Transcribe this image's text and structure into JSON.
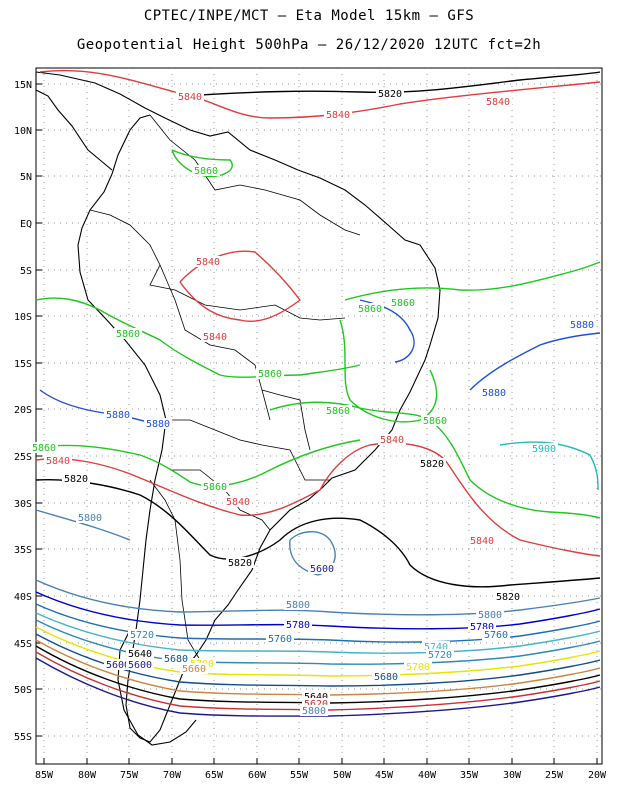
{
  "header": {
    "line1": "CPTEC/INPE/MCT –  Eta Model 15km – GFS",
    "line2": "Geopotential Height 500hPa – 26/12/2020 12UTC fct=2h"
  },
  "axes": {
    "lat_labels": [
      "15N",
      "10N",
      "5N",
      "EQ",
      "5S",
      "10S",
      "15S",
      "20S",
      "25S",
      "30S",
      "35S",
      "40S",
      "45S",
      "50S",
      "55S"
    ],
    "lon_labels": [
      "85W",
      "80W",
      "75W",
      "70W",
      "65W",
      "60W",
      "55W",
      "50W",
      "45W",
      "40W",
      "35W",
      "30W",
      "25W",
      "20W"
    ]
  },
  "colors": {
    "c5600": "#1a1a8c",
    "c5620": "#c83232",
    "c5640": "#000000",
    "c5660": "#cd853f",
    "c5680": "#104e8b",
    "c5700": "#e6e600",
    "c5720": "#2d8bb5",
    "c5740": "#46b4c8",
    "c5760": "#1e6eb4",
    "c5780": "#0000cd",
    "c5800": "#4682b4",
    "c5820": "#000000",
    "c5840": "#e03c3c",
    "c5860": "#1ec81e",
    "c5880": "#1e50dc",
    "c5900": "#1ebeb4"
  },
  "contour_labels": [
    {
      "text": "5840",
      "color": "c5840"
    },
    {
      "text": "5820",
      "color": "c5820"
    },
    {
      "text": "5840",
      "color": "c5840"
    },
    {
      "text": "5840",
      "color": "c5840"
    },
    {
      "text": "5860",
      "color": "c5860"
    },
    {
      "text": "5840",
      "color": "c5840"
    },
    {
      "text": "5840",
      "color": "c5840"
    },
    {
      "text": "5860",
      "color": "c5860"
    },
    {
      "text": "5860",
      "color": "c5860"
    },
    {
      "text": "5860",
      "color": "c5860"
    },
    {
      "text": "5880",
      "color": "c5880"
    },
    {
      "text": "5860",
      "color": "c5860"
    },
    {
      "text": "5880",
      "color": "c5880"
    },
    {
      "text": "5860",
      "color": "c5860"
    },
    {
      "text": "5860",
      "color": "c5860"
    },
    {
      "text": "5880",
      "color": "c5880"
    },
    {
      "text": "5880",
      "color": "c5880"
    },
    {
      "text": "5840",
      "color": "c5840"
    },
    {
      "text": "5900",
      "color": "c5900"
    },
    {
      "text": "5860",
      "color": "c5860"
    },
    {
      "text": "5840",
      "color": "c5840"
    },
    {
      "text": "5820",
      "color": "c5820"
    },
    {
      "text": "5820",
      "color": "c5820"
    },
    {
      "text": "5860",
      "color": "c5860"
    },
    {
      "text": "5840",
      "color": "c5840"
    },
    {
      "text": "5800",
      "color": "c5800"
    },
    {
      "text": "5840",
      "color": "c5840"
    },
    {
      "text": "5820",
      "color": "c5820"
    },
    {
      "text": "5600",
      "color": "c5600"
    },
    {
      "text": "5820",
      "color": "c5820"
    },
    {
      "text": "5800",
      "color": "c5800"
    },
    {
      "text": "5800",
      "color": "c5800"
    },
    {
      "text": "5780",
      "color": "c5780"
    },
    {
      "text": "5780",
      "color": "c5780"
    },
    {
      "text": "5760",
      "color": "c5760"
    },
    {
      "text": "5760",
      "color": "c5760"
    },
    {
      "text": "5740",
      "color": "c5740"
    },
    {
      "text": "5720",
      "color": "c5720"
    },
    {
      "text": "5720",
      "color": "c5720"
    },
    {
      "text": "5700",
      "color": "c5700"
    },
    {
      "text": "5700",
      "color": "c5700"
    },
    {
      "text": "5680",
      "color": "c5680"
    },
    {
      "text": "5680",
      "color": "c5680"
    },
    {
      "text": "5660",
      "color": "c5660"
    },
    {
      "text": "5640",
      "color": "c5640"
    },
    {
      "text": "5640",
      "color": "c5640"
    },
    {
      "text": "5620",
      "color": "c5620"
    },
    {
      "text": "5600",
      "color": "c5600"
    },
    {
      "text": "5600",
      "color": "c5600"
    },
    {
      "text": "5800",
      "color": "c5800"
    },
    {
      "text": "5880",
      "color": "c5880"
    }
  ]
}
